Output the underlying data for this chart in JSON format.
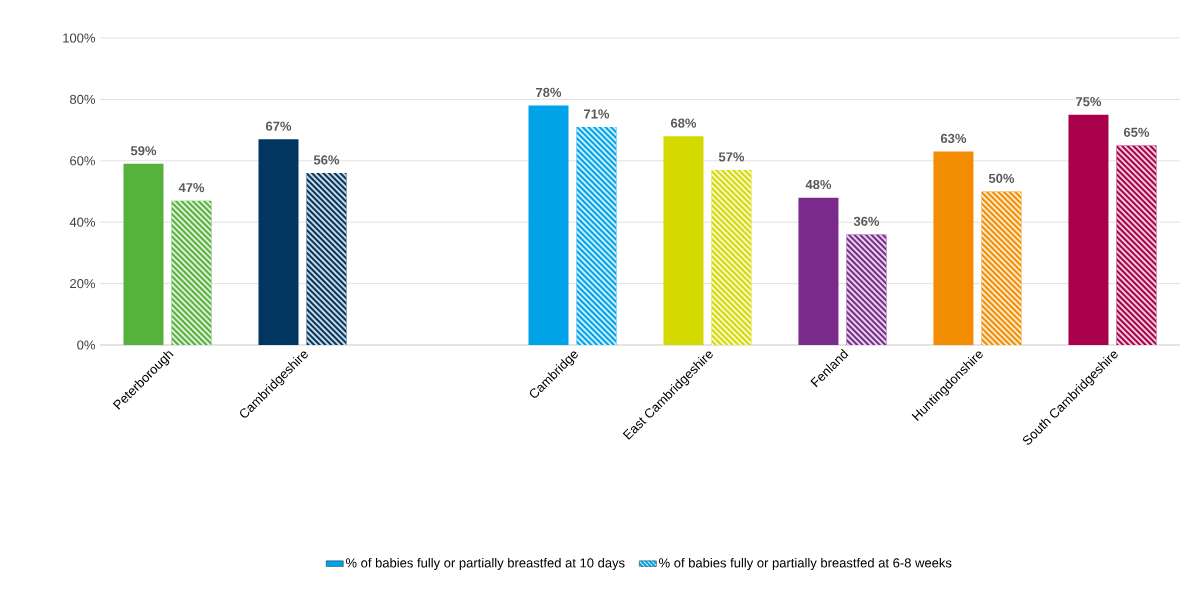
{
  "chart_data": {
    "type": "bar",
    "categories": [
      "Peterborough",
      "Cambridgeshire",
      null,
      "Cambridge",
      "East Cambridgeshire",
      "Fenland",
      "Huntingdonshire",
      "South Cambridgeshire"
    ],
    "series": [
      {
        "name": "% of babies fully or partially breastfed at 10 days",
        "color": "#00a3e8",
        "colors": [
          "#56b13d",
          "#003660",
          "#56b13d",
          "#00a3e8",
          "#d4d900",
          "#7a2a8a",
          "#f28c00",
          "#a8004a"
        ],
        "values": [
          59,
          67,
          null,
          78,
          68,
          48,
          63,
          75
        ],
        "value_labels": [
          "59%",
          "67%",
          null,
          "78%",
          "68%",
          "48%",
          "63%",
          "75%"
        ]
      },
      {
        "name": "% of babies fully or partially breastfed at 6-8 weeks",
        "color": "#00a3e8",
        "colors": [
          "#56b13d",
          "#003660",
          "#56b13d",
          "#00a3e8",
          "#d4d900",
          "#7a2a8a",
          "#f28c00",
          "#a8004a"
        ],
        "values": [
          47,
          56,
          null,
          71,
          57,
          36,
          50,
          65
        ],
        "value_labels": [
          "47%",
          "56%",
          null,
          "71%",
          "57%",
          "36%",
          "50%",
          "65%"
        ]
      }
    ],
    "ylim": [
      0,
      100
    ],
    "yticks": [
      {
        "value": 0,
        "label": "0%"
      },
      {
        "value": 20,
        "label": "20%"
      },
      {
        "value": 40,
        "label": "40%"
      },
      {
        "value": 60,
        "label": "60%"
      },
      {
        "value": 80,
        "label": "80%"
      },
      {
        "value": 100,
        "label": "100%"
      }
    ],
    "grid": "y",
    "legend": "bottom"
  }
}
